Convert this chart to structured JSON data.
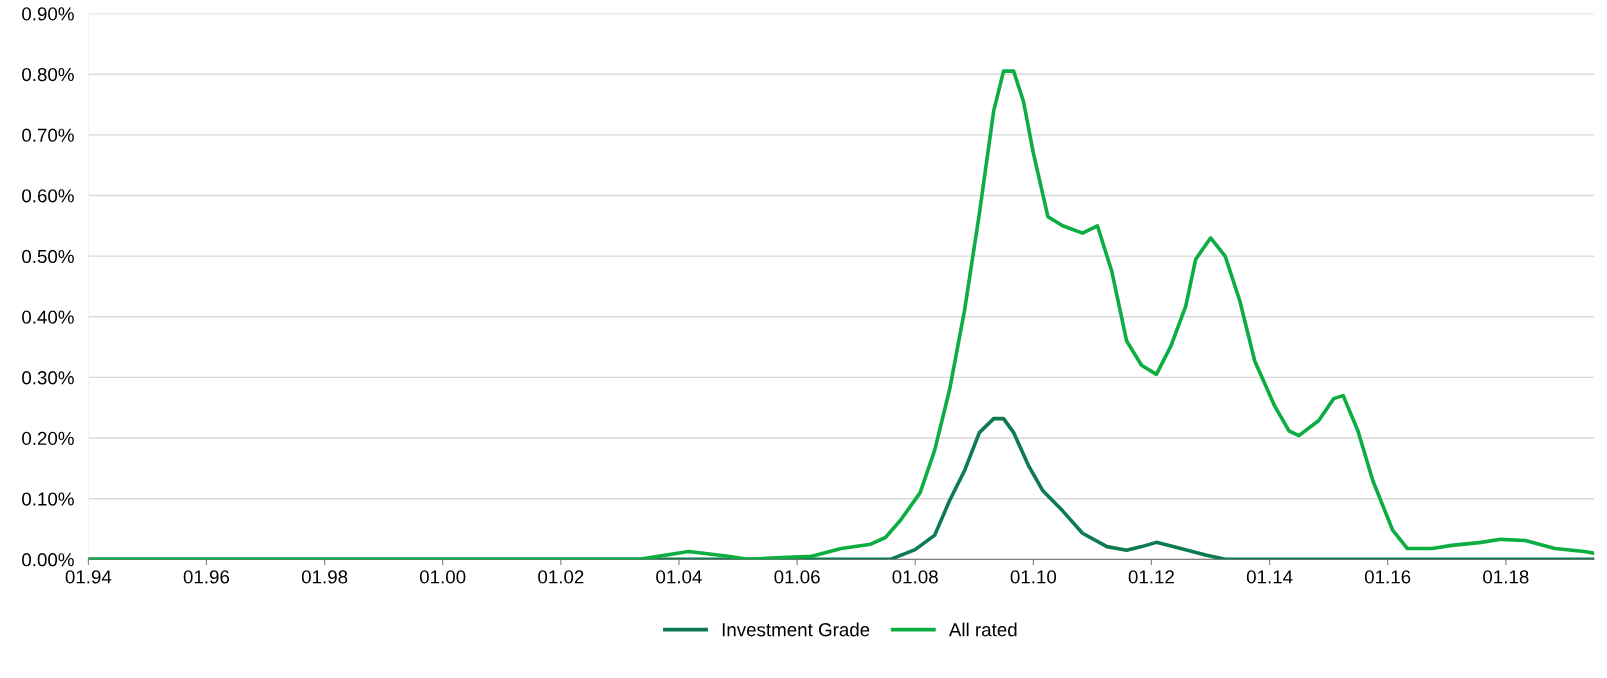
{
  "chart_data": {
    "type": "line",
    "legend": "bottom",
    "grid": "y",
    "line_style": "solid",
    "marker": "none",
    "xlim": [
      "1994-01",
      "2019-07"
    ],
    "xticks": [
      {
        "value": "1994-01",
        "label": "01.94"
      },
      {
        "value": "1996-01",
        "label": "01.96"
      },
      {
        "value": "1998-01",
        "label": "01.98"
      },
      {
        "value": "2000-01",
        "label": "01.00"
      },
      {
        "value": "2002-01",
        "label": "01.02"
      },
      {
        "value": "2004-01",
        "label": "01.04"
      },
      {
        "value": "2006-01",
        "label": "01.06"
      },
      {
        "value": "2008-01",
        "label": "01.08"
      },
      {
        "value": "2010-01",
        "label": "01.10"
      },
      {
        "value": "2012-01",
        "label": "01.12"
      },
      {
        "value": "2014-01",
        "label": "01.14"
      },
      {
        "value": "2016-01",
        "label": "01.16"
      },
      {
        "value": "2018-01",
        "label": "01.18"
      }
    ],
    "ylim": [
      0,
      0.9
    ],
    "yticks": [
      {
        "value": 0,
        "label": "0.00%"
      },
      {
        "value": 0.1,
        "label": "0.10%"
      },
      {
        "value": 0.2,
        "label": "0.20%"
      },
      {
        "value": 0.3,
        "label": "0.30%"
      },
      {
        "value": 0.4,
        "label": "0.40%"
      },
      {
        "value": 0.5,
        "label": "0.50%"
      },
      {
        "value": 0.6,
        "label": "0.60%"
      },
      {
        "value": 0.7,
        "label": "0.70%"
      },
      {
        "value": 0.8,
        "label": "0.80%"
      },
      {
        "value": 0.9,
        "label": "0.90%"
      }
    ],
    "series": [
      {
        "name": "Investment Grade",
        "color": "#0e7a50",
        "x": [
          "1994-01",
          "2007-08",
          "2008-01",
          "2008-05",
          "2008-08",
          "2008-11",
          "2009-02",
          "2009-05",
          "2009-07",
          "2009-09",
          "2009-12",
          "2010-03",
          "2010-07",
          "2010-11",
          "2011-04",
          "2011-08",
          "2011-11",
          "2012-02",
          "2012-07",
          "2012-12",
          "2013-04",
          "2019-07"
        ],
        "values": [
          0,
          0,
          0.016,
          0.04,
          0.097,
          0.146,
          0.209,
          0.232,
          0.232,
          0.209,
          0.155,
          0.113,
          0.08,
          0.043,
          0.021,
          0.015,
          0.021,
          0.028,
          0.018,
          0.007,
          0,
          0
        ]
      },
      {
        "name": "All rated",
        "color": "#0cae42",
        "x": [
          "1994-01",
          "2003-05",
          "2004-03",
          "2004-11",
          "2005-03",
          "2005-10",
          "2006-04",
          "2006-10",
          "2007-04",
          "2007-07",
          "2007-10",
          "2008-02",
          "2008-05",
          "2008-08",
          "2008-11",
          "2009-02",
          "2009-05",
          "2009-07",
          "2009-09",
          "2009-11",
          "2010-01",
          "2010-04",
          "2010-07",
          "2010-11",
          "2011-02",
          "2011-05",
          "2011-08",
          "2011-11",
          "2012-02",
          "2012-05",
          "2012-08",
          "2012-10",
          "2013-01",
          "2013-04",
          "2013-07",
          "2013-10",
          "2014-02",
          "2014-05",
          "2014-07",
          "2014-11",
          "2015-02",
          "2015-04",
          "2015-07",
          "2015-10",
          "2016-02",
          "2016-05",
          "2016-10",
          "2017-02",
          "2017-08",
          "2017-12",
          "2018-05",
          "2018-11",
          "2019-05",
          "2019-07"
        ],
        "values": [
          0,
          0,
          0.013,
          0.005,
          0,
          0.003,
          0.005,
          0.018,
          0.025,
          0.036,
          0.064,
          0.11,
          0.18,
          0.28,
          0.41,
          0.57,
          0.74,
          0.805,
          0.805,
          0.755,
          0.67,
          0.565,
          0.55,
          0.538,
          0.55,
          0.475,
          0.36,
          0.32,
          0.305,
          0.352,
          0.418,
          0.495,
          0.53,
          0.5,
          0.426,
          0.327,
          0.253,
          0.212,
          0.204,
          0.229,
          0.265,
          0.27,
          0.212,
          0.13,
          0.048,
          0.018,
          0.018,
          0.023,
          0.028,
          0.033,
          0.031,
          0.018,
          0.013,
          0.01
        ]
      }
    ]
  }
}
